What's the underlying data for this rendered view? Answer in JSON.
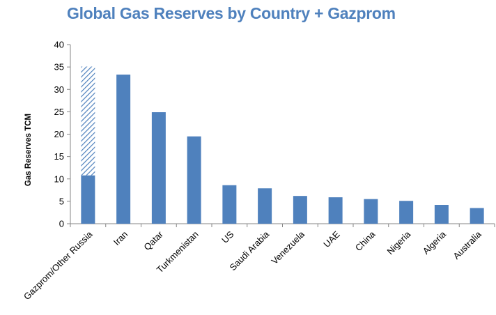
{
  "chart_data": {
    "type": "bar",
    "title": "Global Gas Reserves by Country + Gazprom",
    "ylabel": "Gas Reserves TCM",
    "xlabel": "",
    "ylim": [
      0,
      40
    ],
    "yticks": [
      0,
      5,
      10,
      15,
      20,
      25,
      30,
      35,
      40
    ],
    "grid": false,
    "categories": [
      "Gazprom/Other Russia",
      "Iran",
      "Qatar",
      "Turkmenistan",
      "US",
      "Saudi Arabia",
      "Venezuela",
      "UAE",
      "China",
      "Nigeria",
      "Algeria",
      "Australia"
    ],
    "series": [
      {
        "values": [
          10.8,
          33.3,
          24.9,
          19.5,
          8.6,
          7.9,
          6.2,
          5.9,
          5.5,
          5.1,
          4.2,
          3.5
        ],
        "color": "#4f81bd",
        "pattern": "solid"
      },
      {
        "values": [
          24.3,
          0,
          0,
          0,
          0,
          0,
          0,
          0,
          0,
          0,
          0,
          0
        ],
        "color": "#4f81bd",
        "pattern": "hatched",
        "stacked": true
      }
    ]
  }
}
